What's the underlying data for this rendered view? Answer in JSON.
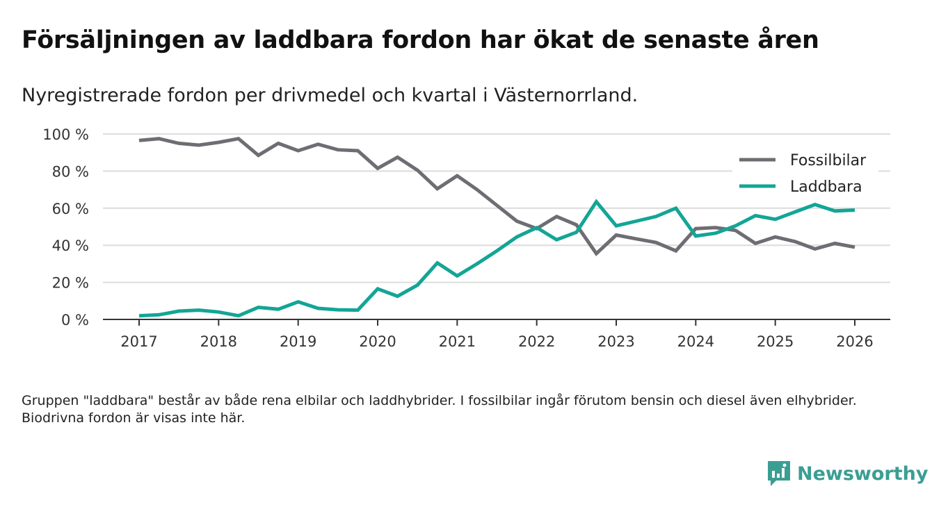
{
  "chart_data": {
    "type": "line",
    "title": "Försäljningen av laddbara fordon har ökat de senaste åren",
    "subtitle": "Nyregistrerade fordon per drivmedel och kvartal i Västernorrland.",
    "xlabel": "",
    "ylabel": "",
    "ylim": [
      0,
      100
    ],
    "xlim": [
      2016.6,
      2026.45
    ],
    "y_ticks": [
      0,
      20,
      40,
      60,
      80,
      100
    ],
    "y_tick_labels": [
      "0 %",
      "20 %",
      "40 %",
      "60 %",
      "80 %",
      "100 %"
    ],
    "x_ticks": [
      2017,
      2018,
      2019,
      2020,
      2021,
      2022,
      2023,
      2024,
      2025,
      2026
    ],
    "x_tick_labels": [
      "2017",
      "2018",
      "2019",
      "2020",
      "2021",
      "2022",
      "2023",
      "2024",
      "2025",
      "2026"
    ],
    "x_start": 2017,
    "x_step": 0.25,
    "grid": true,
    "legend_position": "top-right",
    "series": [
      {
        "name": "Fossilbilar",
        "color": "#6e6d73",
        "values": [
          96.5,
          97.5,
          95,
          94,
          95.5,
          97.5,
          88.5,
          95,
          91,
          94.5,
          91.5,
          91,
          81.5,
          87.5,
          80.5,
          70.5,
          77.5,
          70,
          61.5,
          53,
          49,
          55.5,
          51,
          35.5,
          45.5,
          43.5,
          41.5,
          37,
          49,
          49.5,
          48,
          41,
          44.5,
          42,
          38,
          41,
          39
        ]
      },
      {
        "name": "Laddbara",
        "color": "#13a596",
        "values": [
          2,
          2.5,
          4.5,
          5,
          4,
          2,
          6.5,
          5.5,
          9.5,
          6,
          5.2,
          5,
          16.5,
          12.5,
          18.5,
          30.5,
          23.5,
          30,
          37,
          44.5,
          49.5,
          43,
          47,
          63.5,
          50.5,
          53,
          55.5,
          60,
          45,
          46.5,
          50.5,
          56,
          54,
          58,
          62,
          58.5,
          59
        ]
      }
    ]
  },
  "note": "Gruppen \"laddbara\" består av både rena elbilar och laddhybrider. I fossilbilar ingår förutom bensin och diesel även elhybrider. Biodrivna fordon är visas inte här.",
  "brand": {
    "name": "Newsworthy",
    "color": "#3a9e93"
  }
}
